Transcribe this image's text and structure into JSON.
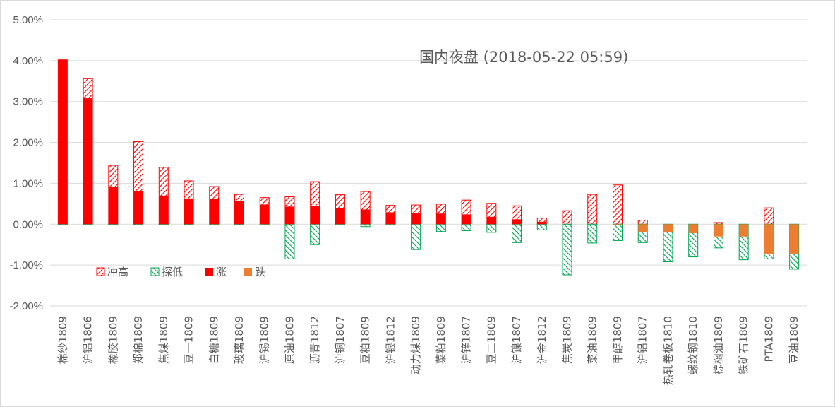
{
  "chart_data": {
    "type": "bar",
    "title": "国内夜盘 (2018-05-22 05:59)",
    "ylim": [
      -2.0,
      5.0
    ],
    "y_ticks": [
      "5.00%",
      "4.00%",
      "3.00%",
      "2.00%",
      "1.00%",
      "0.00%",
      "-1.00%",
      "-2.00%"
    ],
    "grid": true,
    "legend_position": "lower-left",
    "legend": [
      "冲高",
      "探低",
      "涨",
      "跌"
    ],
    "colors": {
      "rise": "#ff0000",
      "fall": "#ed7d31",
      "high": "#ff0000",
      "low": "#00a651",
      "grid": "#d9d9d9",
      "text": "#595959"
    },
    "categories": [
      "棉纱1809",
      "沪铝1806",
      "橡胶1809",
      "郑棉1809",
      "焦煤1809",
      "豆一1809",
      "白糖1809",
      "玻璃1809",
      "沪锡1809",
      "原油1809",
      "沥青1812",
      "沪铜1807",
      "豆粕1809",
      "沪银1812",
      "动力煤1809",
      "菜粕1809",
      "沪锌1807",
      "豆二1809",
      "沪镍1807",
      "沪金1812",
      "焦炭1809",
      "菜油1809",
      "甲醇1809",
      "沪铝1807",
      "热轧卷板1810",
      "螺纹钢1810",
      "棕榈油1809",
      "铁矿石1809",
      "PTA1809",
      "豆油1809"
    ],
    "series": [
      {
        "name": "涨",
        "values": [
          4.02,
          3.08,
          0.92,
          0.8,
          0.7,
          0.63,
          0.61,
          0.57,
          0.48,
          0.43,
          0.45,
          0.4,
          0.36,
          0.29,
          0.28,
          0.26,
          0.24,
          0.18,
          0.12,
          0.06,
          0.0,
          0.0,
          0.0,
          0.0,
          0.0,
          0.0,
          0.0,
          0.0,
          0.0,
          0.0
        ]
      },
      {
        "name": "跌",
        "values": [
          0.0,
          0.0,
          0.0,
          0.0,
          0.0,
          0.0,
          0.0,
          0.0,
          0.0,
          0.0,
          0.0,
          0.0,
          0.0,
          0.0,
          0.0,
          0.0,
          0.0,
          0.0,
          0.0,
          0.0,
          0.0,
          0.0,
          -0.03,
          -0.2,
          -0.2,
          -0.22,
          -0.3,
          -0.3,
          -0.73,
          -0.72
        ]
      },
      {
        "name": "冲高",
        "values": [
          4.02,
          3.56,
          1.44,
          2.02,
          1.39,
          1.06,
          0.92,
          0.73,
          0.65,
          0.67,
          1.04,
          0.72,
          0.8,
          0.46,
          0.47,
          0.49,
          0.59,
          0.51,
          0.45,
          0.15,
          0.33,
          0.73,
          0.96,
          0.1,
          0.0,
          0.0,
          0.04,
          0.0,
          0.4,
          0.0
        ]
      },
      {
        "name": "探低",
        "values": [
          -0.02,
          -0.02,
          -0.02,
          -0.02,
          -0.02,
          -0.02,
          -0.02,
          -0.02,
          -0.02,
          -0.85,
          -0.5,
          -0.02,
          -0.06,
          -0.02,
          -0.62,
          -0.18,
          -0.16,
          -0.2,
          -0.45,
          -0.14,
          -1.24,
          -0.46,
          -0.4,
          -0.45,
          -0.92,
          -0.8,
          -0.58,
          -0.87,
          -0.85,
          -1.1
        ]
      }
    ]
  }
}
